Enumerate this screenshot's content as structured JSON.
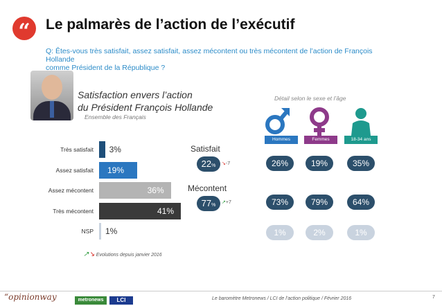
{
  "header": {
    "quote_glyph": "“",
    "title": "Le palmarès de l’action de l’exécutif",
    "question_line1": "Q: Êtes-vous très satisfait, assez satisfait, assez mécontent ou très mécontent de l’action de François Hollande",
    "question_line2": "comme Président de la République ?"
  },
  "section": {
    "title_line1": "Satisfaction envers l’action",
    "title_line2": "du Président François Hollande",
    "subtitle": "Ensemble des Français",
    "detail_title": "Détail selon le sexe et l’âge"
  },
  "chart_data": {
    "type": "bar",
    "orientation": "horizontal",
    "categories": [
      "Très satisfait",
      "Assez satisfait",
      "Assez mécontent",
      "Très mécontent",
      "NSP"
    ],
    "values": [
      3,
      19,
      36,
      41,
      1
    ],
    "value_labels": [
      "3%",
      "19%",
      "36%",
      "41%",
      "1%"
    ],
    "colors": [
      "#1e4f7a",
      "#2b77c0",
      "#b4b4b4",
      "#3a3a3a",
      "#c9d3df"
    ],
    "xlim": [
      0,
      41
    ]
  },
  "groups": {
    "satisfait": {
      "label": "Satisfait",
      "value": "22",
      "unit": "%",
      "evolution": "-7",
      "trend": "down"
    },
    "mecontent": {
      "label": "Mécontent",
      "value": "77",
      "unit": "%",
      "evolution": "+7",
      "trend": "up"
    }
  },
  "demographics": {
    "columns": [
      {
        "label": "Hommes",
        "icon": "male-symbol-icon",
        "color": "#2b77c0",
        "satisfait": "26%",
        "mecontent": "73%",
        "nsp": "1%"
      },
      {
        "label": "Femmes",
        "icon": "female-symbol-icon",
        "color": "#8e3a8a",
        "satisfait": "19%",
        "mecontent": "79%",
        "nsp": "2%"
      },
      {
        "label": "18-34 ans",
        "icon": "person-icon",
        "color": "#1e9a8e",
        "satisfait": "35%",
        "mecontent": "64%",
        "nsp": "1%"
      }
    ]
  },
  "legend": {
    "evolution_note": "Evolutions depuis janvier 2016"
  },
  "footer": {
    "logo_opinionway": "“opinionway",
    "logo_metronews": "metronews",
    "logo_lci": "LCI",
    "text": "Le baromètre Metronews / LCI de l’action politique / Février 2016",
    "page_number": "7"
  }
}
